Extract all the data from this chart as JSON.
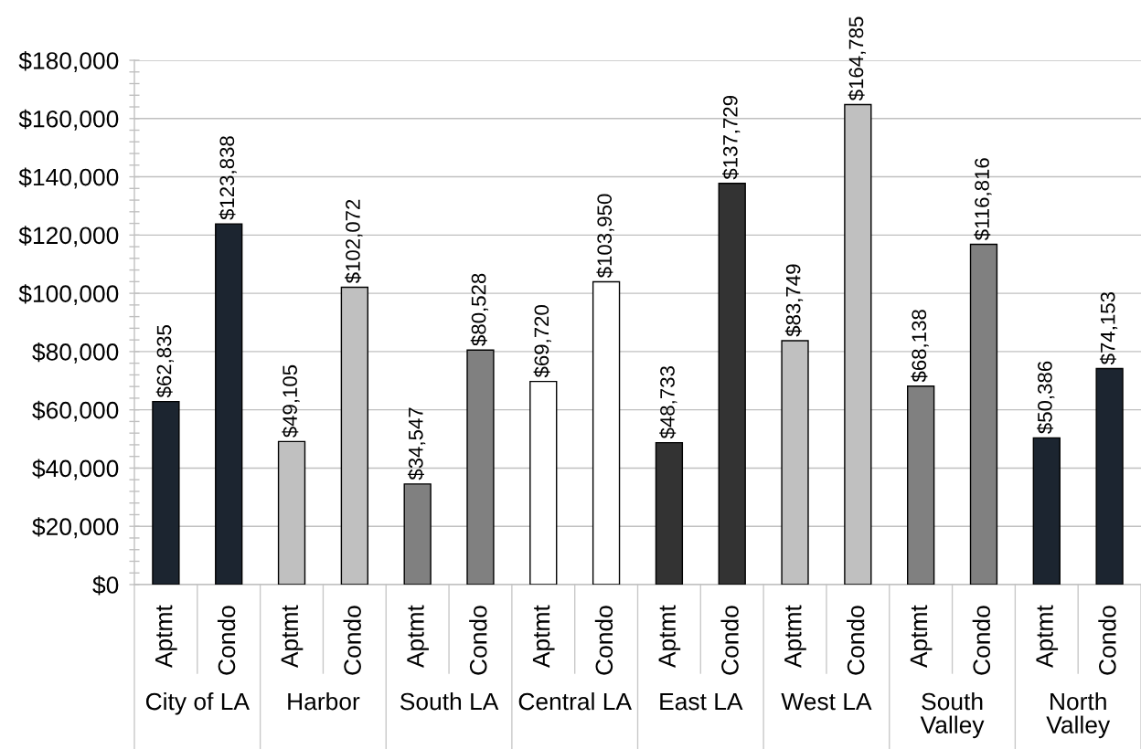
{
  "chart_data": {
    "type": "bar",
    "categories": [
      "Aptmt",
      "Condo",
      "Aptmt",
      "Condo",
      "Aptmt",
      "Condo",
      "Aptmt",
      "Condo",
      "Aptmt",
      "Condo",
      "Aptmt",
      "Condo",
      "Aptmt",
      "Condo",
      "Aptmt",
      "Condo"
    ],
    "values": [
      62835,
      123838,
      49105,
      102072,
      34547,
      80528,
      69720,
      103950,
      48733,
      137729,
      83749,
      164785,
      68138,
      116816,
      50386,
      74153
    ],
    "value_labels": [
      "$62,835",
      "$123,838",
      "$49,105",
      "$102,072",
      "$34,547",
      "$80,528",
      "$69,720",
      "$103,950",
      "$48,733",
      "$137,729",
      "$83,749",
      "$164,785",
      "$68,138",
      "$116,816",
      "$50,386",
      "$74,153"
    ],
    "colors": [
      "#1c2530",
      "#1c2530",
      "#c0c0c0",
      "#c0c0c0",
      "#808080",
      "#808080",
      "#ffffff",
      "#ffffff",
      "#333333",
      "#333333",
      "#c0c0c0",
      "#c0c0c0",
      "#808080",
      "#808080",
      "#1c2530",
      "#1c2530"
    ],
    "annotations": [
      "City of LA",
      "Harbor",
      "South LA",
      "Central LA",
      "East LA",
      "West LA",
      "South Valley",
      "North Valley"
    ],
    "ylim": [
      0,
      180000
    ],
    "yticks": [
      {
        "value": 0,
        "label": "$0"
      },
      {
        "value": 4000,
        "label": null
      },
      {
        "value": 8000,
        "label": null
      },
      {
        "value": 12000,
        "label": null
      },
      {
        "value": 16000,
        "label": null
      },
      {
        "value": 20000,
        "label": "$20,000"
      },
      {
        "value": 24000,
        "label": null
      },
      {
        "value": 28000,
        "label": null
      },
      {
        "value": 32000,
        "label": null
      },
      {
        "value": 36000,
        "label": null
      },
      {
        "value": 40000,
        "label": "$40,000"
      },
      {
        "value": 44000,
        "label": null
      },
      {
        "value": 48000,
        "label": null
      },
      {
        "value": 52000,
        "label": null
      },
      {
        "value": 56000,
        "label": null
      },
      {
        "value": 60000,
        "label": "$60,000"
      },
      {
        "value": 64000,
        "label": null
      },
      {
        "value": 68000,
        "label": null
      },
      {
        "value": 72000,
        "label": null
      },
      {
        "value": 76000,
        "label": null
      },
      {
        "value": 80000,
        "label": "$80,000"
      },
      {
        "value": 84000,
        "label": null
      },
      {
        "value": 88000,
        "label": null
      },
      {
        "value": 92000,
        "label": null
      },
      {
        "value": 96000,
        "label": null
      },
      {
        "value": 100000,
        "label": "$100,000"
      },
      {
        "value": 104000,
        "label": null
      },
      {
        "value": 108000,
        "label": null
      },
      {
        "value": 112000,
        "label": null
      },
      {
        "value": 116000,
        "label": null
      },
      {
        "value": 120000,
        "label": "$120,000"
      },
      {
        "value": 124000,
        "label": null
      },
      {
        "value": 128000,
        "label": null
      },
      {
        "value": 132000,
        "label": null
      },
      {
        "value": 136000,
        "label": null
      },
      {
        "value": 140000,
        "label": "$140,000"
      },
      {
        "value": 144000,
        "label": null
      },
      {
        "value": 148000,
        "label": null
      },
      {
        "value": 152000,
        "label": null
      },
      {
        "value": 156000,
        "label": null
      },
      {
        "value": 160000,
        "label": "$160,000"
      },
      {
        "value": 164000,
        "label": null
      },
      {
        "value": 168000,
        "label": null
      },
      {
        "value": 172000,
        "label": null
      },
      {
        "value": 176000,
        "label": null
      },
      {
        "value": 180000,
        "label": "$180,000"
      }
    ],
    "grid": "y",
    "legend": false
  }
}
